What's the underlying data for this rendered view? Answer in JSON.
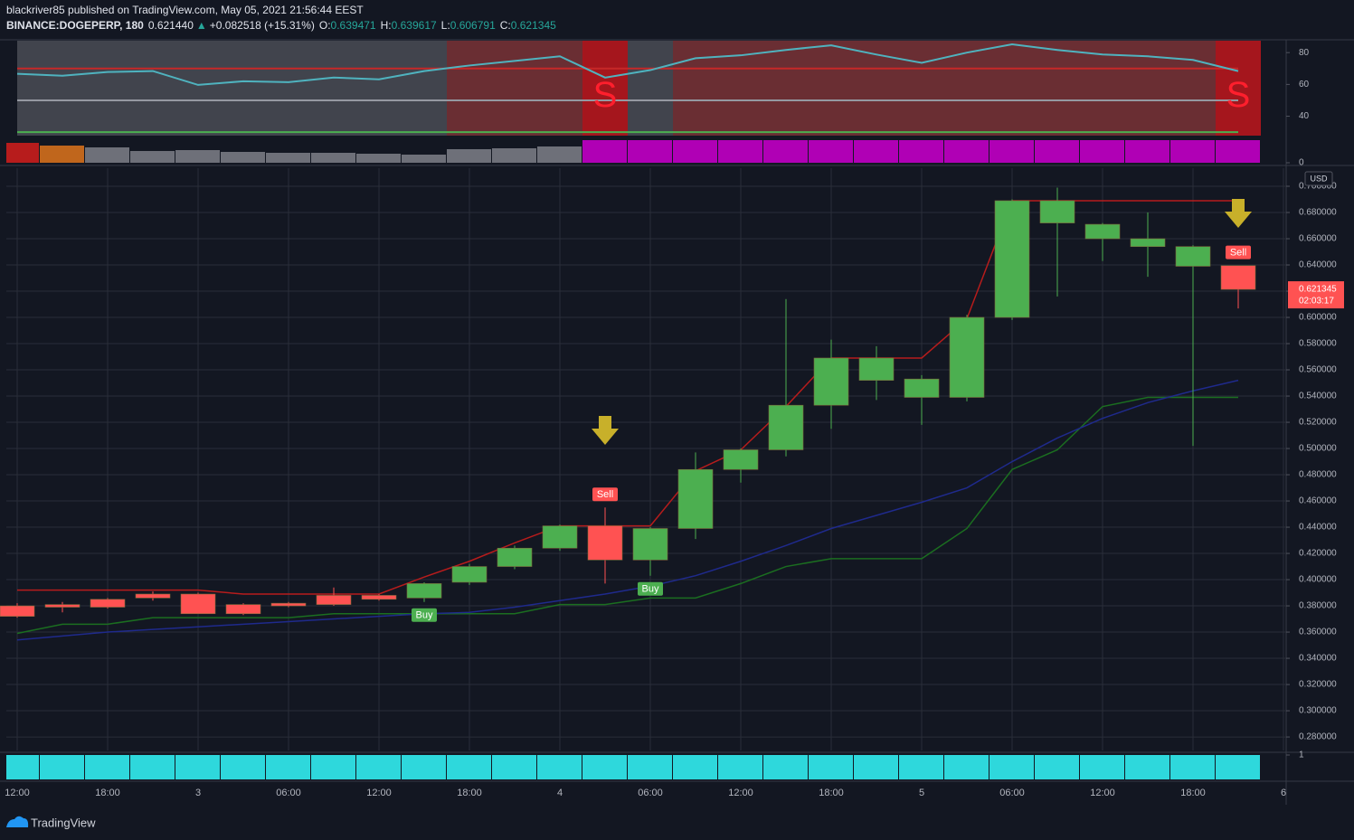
{
  "header": {
    "line1": "blackriver85 published on TradingView.com, May 05, 2021 21:56:44 EEST",
    "symbol": "BINANCE:DOGEPERP, 180",
    "last": "0.621440",
    "arrow": "▲",
    "change": "+0.082518 (+15.31%)",
    "ohlc": [
      {
        "label": "O:",
        "value": "0.639471"
      },
      {
        "label": "H:",
        "value": "0.639617"
      },
      {
        "label": "L:",
        "value": "0.606791"
      },
      {
        "label": "C:",
        "value": "0.621345"
      }
    ]
  },
  "price_tag": {
    "value": 0.621345,
    "countdown": "02:03:17",
    "currency": "USD",
    "color": "#ff5252"
  },
  "logo": "TradingView",
  "chart_data": [
    {
      "type": "line",
      "x": [
        0,
        3,
        6,
        9,
        12,
        15,
        18,
        21,
        24,
        27,
        30,
        33,
        36,
        39,
        42,
        45,
        48,
        51,
        54,
        57,
        60,
        63,
        66,
        69,
        72,
        75,
        78,
        81
      ],
      "series": [
        {
          "color": "#4fb3bf",
          "values": [
            66.7,
            65.5,
            67.8,
            68.4,
            59.7,
            62.0,
            61.4,
            64.3,
            63.2,
            68.4,
            71.9,
            74.8,
            77.7,
            64.3,
            69.0,
            76.5,
            78.3,
            81.7,
            84.6,
            78.8,
            73.6,
            80.0,
            85.2,
            81.7,
            78.8,
            77.7,
            75.4,
            68.4
          ]
        }
      ],
      "ylim": [
        27.8,
        87.5
      ],
      "yticks": [
        40,
        60,
        80
      ],
      "levels": [
        {
          "value": 70,
          "color": "#c62828"
        },
        {
          "value": 50,
          "color": "#9598a1"
        },
        {
          "value": 30,
          "color": "#4caf50"
        }
      ],
      "zone_colors": [
        "#4a4c55",
        "#4a4c55",
        "#4a4c55",
        "#4a4c55",
        "#4a4c55",
        "#4a4c55",
        "#4a4c55",
        "#4a4c55",
        "#4a4c55",
        "#4a4c55",
        "#7a3336",
        "#7a3336",
        "#7a3336",
        "#c0161c",
        "#4a4c55",
        "#7a3336",
        "#7a3336",
        "#7a3336",
        "#7a3336",
        "#7a3336",
        "#7a3336",
        "#7a3336",
        "#7a3336",
        "#7a3336",
        "#7a3336",
        "#7a3336",
        "#7a3336",
        "#c0161c"
      ],
      "markers": [
        {
          "x": 39,
          "label": "S"
        },
        {
          "x": 81,
          "label": "S"
        }
      ],
      "marker_color": "#ff1f2d"
    },
    {
      "type": "bar",
      "x": [
        0,
        3,
        6,
        9,
        12,
        15,
        18,
        21,
        24,
        27,
        30,
        33,
        36,
        39,
        42,
        45,
        48,
        51,
        54,
        57,
        60,
        63,
        66,
        69,
        72,
        75,
        78,
        81
      ],
      "values": [
        22,
        19,
        17,
        13,
        14,
        12,
        11,
        11,
        10,
        9,
        15,
        16,
        18,
        25,
        25,
        25,
        25,
        25,
        25,
        25,
        25,
        25,
        25,
        25,
        25,
        25,
        25,
        25
      ],
      "colors": [
        "#b71c1c",
        "#c0661c",
        "#6e7079",
        "#6e7079",
        "#6e7079",
        "#6e7079",
        "#6e7079",
        "#6e7079",
        "#6e7079",
        "#6e7079",
        "#6e7079",
        "#6e7079",
        "#6e7079",
        "#b000b5",
        "#b000b5",
        "#b000b5",
        "#b000b5",
        "#b000b5",
        "#b000b5",
        "#b000b5",
        "#b000b5",
        "#b000b5",
        "#b000b5",
        "#b000b5",
        "#b000b5",
        "#b000b5",
        "#b000b5",
        "#b000b5"
      ],
      "ylim": [
        0,
        25
      ],
      "yticks": [
        0
      ]
    },
    {
      "type": "candlestick",
      "x": [
        0,
        3,
        6,
        9,
        12,
        15,
        18,
        21,
        24,
        27,
        30,
        33,
        36,
        39,
        42,
        45,
        48,
        51,
        54,
        57,
        60,
        63,
        66,
        69,
        72,
        75,
        78,
        81
      ],
      "open": [
        0.38,
        0.381,
        0.385,
        0.389,
        0.389,
        0.381,
        0.382,
        0.388,
        0.388,
        0.386,
        0.398,
        0.41,
        0.424,
        0.441,
        0.415,
        0.439,
        0.484,
        0.499,
        0.533,
        0.552,
        0.539,
        0.539,
        0.6,
        0.672,
        0.66,
        0.654,
        0.639,
        0.639471
      ],
      "high": [
        0.382,
        0.383,
        0.386,
        0.391,
        0.39,
        0.382,
        0.383,
        0.394,
        0.389,
        0.398,
        0.412,
        0.426,
        0.442,
        0.455,
        0.44,
        0.497,
        0.5,
        0.614,
        0.583,
        0.578,
        0.556,
        0.602,
        0.69,
        0.699,
        0.672,
        0.68,
        0.655,
        0.639617
      ],
      "low": [
        0.371,
        0.375,
        0.378,
        0.384,
        0.374,
        0.373,
        0.379,
        0.38,
        0.384,
        0.383,
        0.396,
        0.408,
        0.422,
        0.397,
        0.403,
        0.431,
        0.474,
        0.494,
        0.515,
        0.537,
        0.518,
        0.536,
        0.598,
        0.616,
        0.643,
        0.631,
        0.502,
        0.606791
      ],
      "close": [
        0.372,
        0.379,
        0.379,
        0.386,
        0.374,
        0.374,
        0.38,
        0.381,
        0.385,
        0.397,
        0.41,
        0.424,
        0.441,
        0.415,
        0.439,
        0.484,
        0.499,
        0.533,
        0.569,
        0.569,
        0.553,
        0.6,
        0.689,
        0.689,
        0.671,
        0.66,
        0.654,
        0.621345
      ],
      "up_color": "#4caf50",
      "down_color": "#ff5252",
      "series": [
        {
          "color": "#b71c1c",
          "values": [
            0.392,
            0.392,
            0.392,
            0.392,
            0.392,
            0.389,
            0.389,
            0.389,
            0.389,
            0.402,
            0.414,
            0.428,
            0.441,
            0.441,
            0.441,
            0.483,
            0.499,
            0.532,
            0.569,
            0.569,
            0.569,
            0.599,
            0.689,
            0.689,
            0.689,
            0.689,
            0.689,
            0.689
          ]
        },
        {
          "color": "#1b6e20",
          "values": [
            0.359,
            0.366,
            0.366,
            0.371,
            0.371,
            0.371,
            0.371,
            0.374,
            0.374,
            0.374,
            0.374,
            0.374,
            0.381,
            0.381,
            0.386,
            0.386,
            0.397,
            0.41,
            0.416,
            0.416,
            0.416,
            0.439,
            0.484,
            0.499,
            0.532,
            0.539,
            0.539,
            0.539
          ]
        },
        {
          "color": "#1f2a8c",
          "values": [
            0.354,
            0.357,
            0.36,
            0.362,
            0.364,
            0.366,
            0.368,
            0.37,
            0.372,
            0.374,
            0.375,
            0.379,
            0.384,
            0.389,
            0.395,
            0.403,
            0.414,
            0.426,
            0.439,
            0.449,
            0.459,
            0.47,
            0.49,
            0.508,
            0.523,
            0.535,
            0.544,
            0.552
          ]
        }
      ],
      "signals": [
        {
          "x": 39,
          "label": "Sell",
          "color": "#ff5252"
        },
        {
          "x": 81,
          "label": "Sell",
          "color": "#ff5252"
        },
        {
          "x": 27,
          "label": "Buy",
          "color": "#4caf50"
        },
        {
          "x": 42,
          "label": "Buy",
          "color": "#4caf50"
        }
      ],
      "xlim": [
        -0.72,
        84.18
      ],
      "xticks": [
        {
          "value": 0,
          "label": "12:00"
        },
        {
          "value": 6,
          "label": "18:00"
        },
        {
          "value": 12,
          "label": "3"
        },
        {
          "value": 18,
          "label": "06:00"
        },
        {
          "value": 24,
          "label": "12:00"
        },
        {
          "value": 30,
          "label": "18:00"
        },
        {
          "value": 36,
          "label": "4"
        },
        {
          "value": 42,
          "label": "06:00"
        },
        {
          "value": 48,
          "label": "12:00"
        },
        {
          "value": 54,
          "label": "18:00"
        },
        {
          "value": 60,
          "label": "5"
        },
        {
          "value": 66,
          "label": "06:00"
        },
        {
          "value": 72,
          "label": "12:00"
        },
        {
          "value": 78,
          "label": "18:00"
        },
        {
          "value": 84,
          "label": "6"
        }
      ],
      "ylim": [
        0.2697,
        0.7138
      ],
      "yticks": [
        {
          "value": 0.28,
          "label": "0.280000"
        },
        {
          "value": 0.3,
          "label": "0.300000"
        },
        {
          "value": 0.32,
          "label": "0.320000"
        },
        {
          "value": 0.34,
          "label": "0.340000"
        },
        {
          "value": 0.36,
          "label": "0.360000"
        },
        {
          "value": 0.38,
          "label": "0.380000"
        },
        {
          "value": 0.4,
          "label": "0.400000"
        },
        {
          "value": 0.42,
          "label": "0.420000"
        },
        {
          "value": 0.44,
          "label": "0.440000"
        },
        {
          "value": 0.46,
          "label": "0.460000"
        },
        {
          "value": 0.48,
          "label": "0.480000"
        },
        {
          "value": 0.5,
          "label": "0.500000"
        },
        {
          "value": 0.52,
          "label": "0.520000"
        },
        {
          "value": 0.54,
          "label": "0.540000"
        },
        {
          "value": 0.56,
          "label": "0.560000"
        },
        {
          "value": 0.58,
          "label": "0.580000"
        },
        {
          "value": 0.6,
          "label": "0.600000"
        },
        {
          "value": 0.62,
          "label": "0.620000"
        },
        {
          "value": 0.64,
          "label": "0.640000"
        },
        {
          "value": 0.66,
          "label": "0.660000"
        },
        {
          "value": 0.68,
          "label": "0.680000"
        },
        {
          "value": 0.7,
          "label": "0.700000"
        }
      ],
      "grid": true
    },
    {
      "type": "bar",
      "x": [
        0,
        3,
        6,
        9,
        12,
        15,
        18,
        21,
        24,
        27,
        30,
        33,
        36,
        39,
        42,
        45,
        48,
        51,
        54,
        57,
        60,
        63,
        66,
        69,
        72,
        75,
        78,
        81
      ],
      "values": [
        1,
        1,
        1,
        1,
        1,
        1,
        1,
        1,
        1,
        1,
        1,
        1,
        1,
        1,
        1,
        1,
        1,
        1,
        1,
        1,
        1,
        1,
        1,
        1,
        1,
        1,
        1,
        1
      ],
      "color": "#2ed8dc",
      "ylim": [
        0,
        1
      ],
      "yticks": [
        1
      ]
    }
  ]
}
